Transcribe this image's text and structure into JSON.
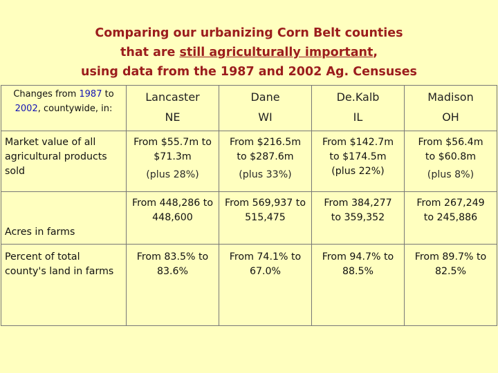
{
  "title": {
    "line1": "Comparing our urbanizing Corn Belt counties",
    "line2_pre": "that are ",
    "line2_underlined": "still agriculturally important",
    "line2_post": ",",
    "line3": "using data from the 1987 and 2002 Ag. Censuses"
  },
  "table": {
    "header": {
      "label_line1_pre": "Changes from ",
      "label_year1": "1987",
      "label_line1_mid": " to",
      "label_year2": "2002",
      "label_line2_post": ", countywide, in:",
      "counties": [
        {
          "name": "Lancaster",
          "state": "NE"
        },
        {
          "name": "Dane",
          "state": "WI"
        },
        {
          "name": "De.Kalb",
          "state": "IL"
        },
        {
          "name": "Madison",
          "state": "OH"
        }
      ]
    },
    "rows": [
      {
        "label_lines": [
          "Market value of all",
          "agricultural products",
          "sold"
        ],
        "cells": [
          {
            "lines": [
              "From $55.7m to",
              "$71.3m"
            ],
            "pct": "(plus 28%)"
          },
          {
            "lines": [
              "From $216.5m",
              "to $287.6m"
            ],
            "pct": "(plus 33%)"
          },
          {
            "lines": [
              "From $142.7m",
              "to $174.5m",
              "(plus 22%)"
            ],
            "pct": ""
          },
          {
            "lines": [
              "From $56.4m",
              "to $60.8m"
            ],
            "pct": "(plus 8%)"
          }
        ]
      },
      {
        "label_lines": [
          "Acres in farms"
        ],
        "cells": [
          {
            "lines": [
              "From 448,286 to",
              "448,600"
            ]
          },
          {
            "lines": [
              "From 569,937 to",
              "515,475"
            ]
          },
          {
            "lines": [
              "From 384,277",
              "to 359,352"
            ]
          },
          {
            "lines": [
              "From 267,249",
              "to 245,886"
            ]
          }
        ]
      },
      {
        "label_lines": [
          "Percent of total",
          "county's land in farms"
        ],
        "cells": [
          {
            "lines": [
              "From 83.5% to",
              "83.6%"
            ]
          },
          {
            "lines": [
              "From 74.1% to",
              "67.0%"
            ]
          },
          {
            "lines": [
              "From 94.7% to",
              "88.5%"
            ]
          },
          {
            "lines": [
              "From 89.7% to",
              "82.5%"
            ]
          }
        ]
      }
    ]
  }
}
